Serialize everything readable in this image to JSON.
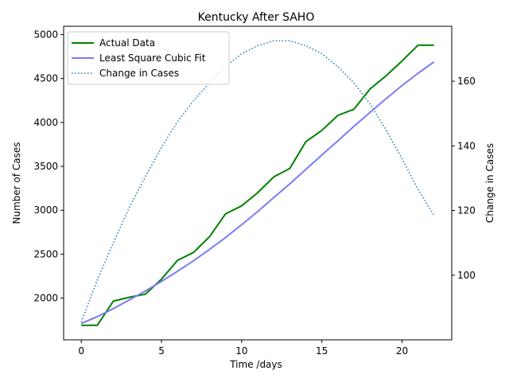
{
  "chart_data": {
    "type": "line",
    "title": "Kentucky After SAHO",
    "xlabel": "Time /days",
    "ylabel": "Number of Cases",
    "y2label": "Change in Cases",
    "xlim": [
      -1.1,
      23.1
    ],
    "ylim": [
      1525,
      5095
    ],
    "y2lim": [
      80,
      177
    ],
    "xticks": [
      0,
      5,
      10,
      15,
      20
    ],
    "yticks": [
      2000,
      2500,
      3000,
      3500,
      4000,
      4500,
      5000
    ],
    "y2ticks": [
      100,
      120,
      140,
      160
    ],
    "grid": false,
    "legend_position": "upper-left",
    "x": [
      0,
      1,
      2,
      3,
      4,
      5,
      6,
      7,
      8,
      9,
      10,
      11,
      12,
      13,
      14,
      15,
      16,
      17,
      18,
      19,
      20,
      21,
      22
    ],
    "series": [
      {
        "name": "Actual Data",
        "axis": "left",
        "color": "#008000",
        "style": "solid",
        "width": 2,
        "values": [
          1690,
          1690,
          1965,
          2010,
          2045,
          2215,
          2430,
          2520,
          2700,
          2960,
          3050,
          3200,
          3380,
          3475,
          3780,
          3910,
          4080,
          4150,
          4380,
          4530,
          4700,
          4880,
          4880
        ]
      },
      {
        "name": "Least Square Cubic Fit",
        "axis": "left",
        "color": "#7b7bf7",
        "style": "solid",
        "width": 2,
        "values": [
          1710,
          1790,
          1880,
          1980,
          2080,
          2190,
          2305,
          2425,
          2555,
          2690,
          2835,
          2985,
          3145,
          3300,
          3465,
          3630,
          3790,
          3955,
          4115,
          4270,
          4420,
          4560,
          4690
        ]
      },
      {
        "name": "Change in Cases",
        "axis": "right",
        "color": "#1f77b4",
        "style": "dotted",
        "width": 1.5,
        "values": [
          85.5,
          98.5,
          110,
          121,
          130.5,
          139.5,
          147.5,
          154,
          159.5,
          164.5,
          168.5,
          171,
          172.5,
          172.5,
          171,
          168.5,
          164.5,
          159.5,
          153,
          145,
          136,
          126.5,
          118.5
        ]
      }
    ]
  }
}
